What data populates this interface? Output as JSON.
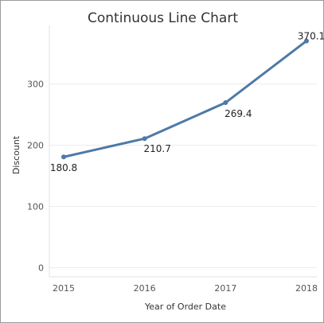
{
  "chart_data": {
    "type": "line",
    "title": "Continuous Line Chart",
    "xlabel": "Year of Order Date",
    "ylabel": "Discount",
    "x": [
      "2015",
      "2016",
      "2017",
      "2018"
    ],
    "values": [
      180.8,
      210.7,
      269.4,
      370.1
    ],
    "data_labels": [
      "180.8",
      "210.7",
      "269.4",
      "370.1"
    ],
    "yticks": [
      0,
      100,
      200,
      300
    ],
    "ylim": [
      -15,
      385
    ],
    "grid": true,
    "line_color": "#4e79a7"
  }
}
